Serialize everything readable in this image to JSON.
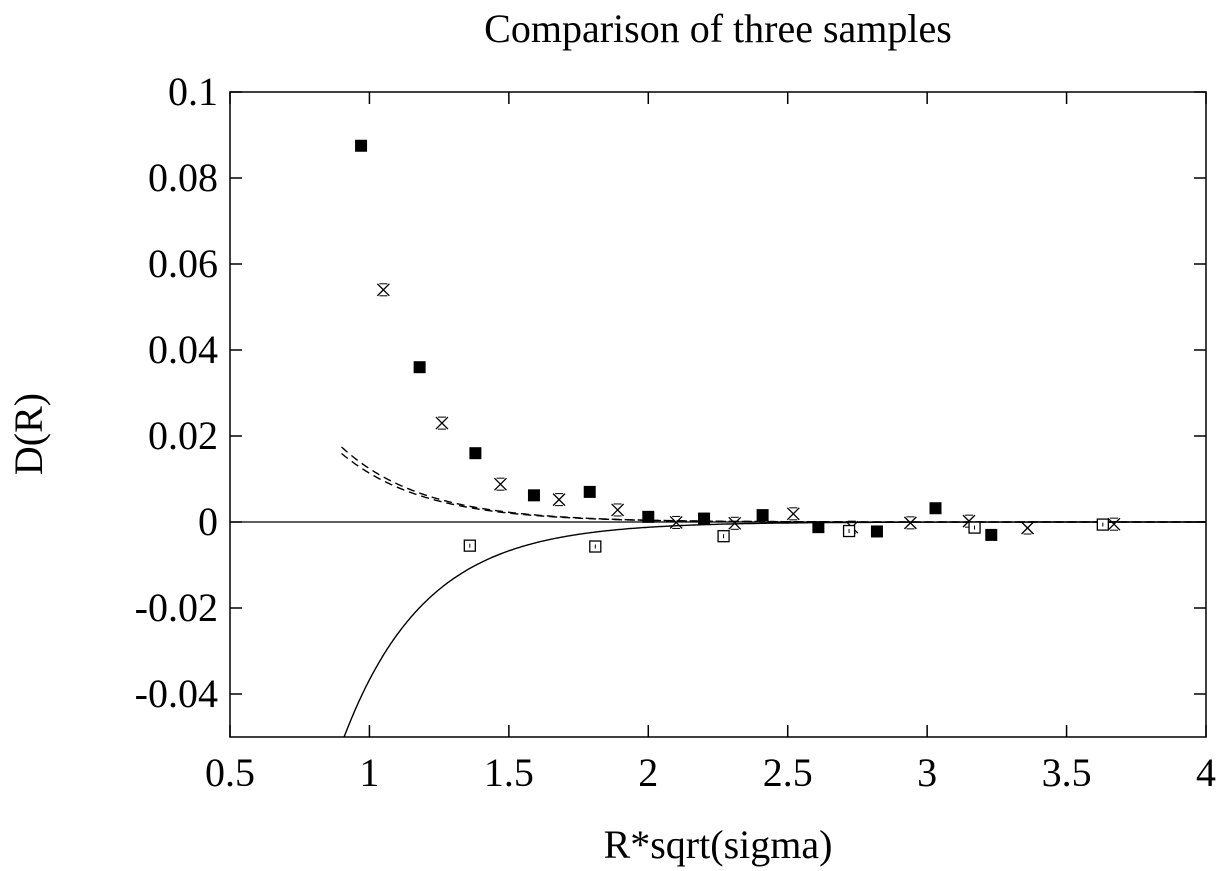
{
  "chart_data": {
    "type": "scatter",
    "title": "Comparison of three samples",
    "xlabel": "R*sqrt(sigma)",
    "ylabel": "D(R)",
    "xlim": [
      0.5,
      4
    ],
    "ylim": [
      -0.05,
      0.1
    ],
    "x_ticks": [
      "0.5",
      "1",
      "1.5",
      "2",
      "2.5",
      "3",
      "3.5",
      "4"
    ],
    "y_ticks": [
      "0.1",
      "0.08",
      "0.06",
      "0.04",
      "0.02",
      "0",
      "-0.02",
      "-0.04"
    ],
    "grid": false,
    "legend": "none",
    "series": [
      {
        "marker": "filled-square",
        "x": [
          0.97,
          1.18,
          1.38,
          1.59,
          1.79,
          2.0,
          2.2,
          2.41,
          2.61,
          2.82,
          3.03,
          3.23
        ],
        "y": [
          0.0875,
          0.036,
          0.016,
          0.0062,
          0.007,
          0.0012,
          0.0008,
          0.0016,
          -0.0012,
          -0.0022,
          0.0032,
          -0.003
        ]
      },
      {
        "marker": "cross",
        "x": [
          1.05,
          1.26,
          1.47,
          1.68,
          1.89,
          2.1,
          2.31,
          2.52,
          2.73,
          2.94,
          3.15,
          3.36,
          3.67
        ],
        "y": [
          0.054,
          0.023,
          0.0088,
          0.0052,
          0.0028,
          -0.0001,
          -0.0003,
          0.0019,
          -0.0012,
          -0.0002,
          0.0002,
          -0.0014,
          -0.0005
        ]
      },
      {
        "marker": "open-square",
        "x": [
          1.36,
          1.81,
          2.27,
          2.72,
          3.17,
          3.63
        ],
        "y": [
          -0.0055,
          -0.0057,
          -0.0033,
          -0.0021,
          -0.0013,
          -0.0006
        ]
      }
    ],
    "curves": [
      {
        "style": "dashed",
        "a": 0.34,
        "k": 3.4
      },
      {
        "style": "dashed",
        "a": 0.372,
        "k": 3.4
      },
      {
        "style": "solid",
        "a": -1.1,
        "k": 3.4
      },
      {
        "style": "solid",
        "type": "zero-line",
        "y": 0
      }
    ]
  }
}
